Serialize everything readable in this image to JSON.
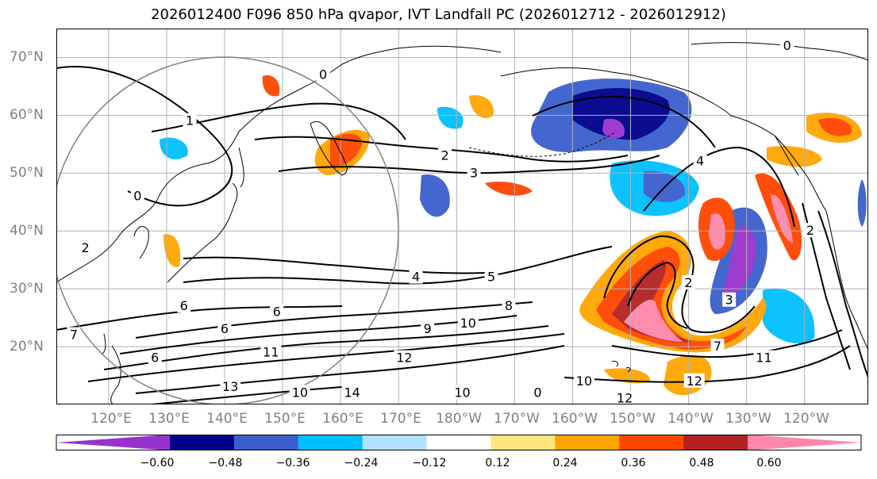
{
  "figure": {
    "title": "2026012400 F096 850 hPa qvapor, IVT Landfall PC (2026012712 - 2026012912)"
  },
  "map": {
    "projection": "PlateCarree (Pacific-centered)",
    "extent": {
      "lon_min": 111,
      "lon_max": 251,
      "lat_min": 10,
      "lat_max": 75
    },
    "lat_labels": [
      "70°N",
      "60°N",
      "50°N",
      "40°N",
      "30°N",
      "20°N"
    ],
    "lat_values": [
      70,
      60,
      50,
      40,
      30,
      20
    ],
    "lon_labels": [
      "120°E",
      "130°E",
      "140°E",
      "150°E",
      "160°E",
      "170°E",
      "180°W",
      "170°W",
      "160°W",
      "150°W",
      "140°W",
      "130°W",
      "120°W"
    ],
    "lon_values": [
      120,
      130,
      140,
      150,
      160,
      170,
      180,
      190,
      200,
      210,
      220,
      230,
      240
    ],
    "gridlines": true,
    "circle": {
      "center_lon": 140,
      "center_lat": 40,
      "radius_deg": 30,
      "color": "#808080"
    },
    "contour_labels": [
      {
        "text": "0",
        "lon": 194,
        "lat": 12
      },
      {
        "text": "1",
        "lon": 134,
        "lat": 59
      },
      {
        "text": "2",
        "lon": 178,
        "lat": 53
      },
      {
        "text": "3",
        "lon": 183,
        "lat": 50
      },
      {
        "text": "4",
        "lon": 173,
        "lat": 32
      },
      {
        "text": "5",
        "lon": 186,
        "lat": 32
      },
      {
        "text": "6",
        "lon": 133,
        "lat": 27
      },
      {
        "text": "6",
        "lon": 149,
        "lat": 26
      },
      {
        "text": "6",
        "lon": 140,
        "lat": 23
      },
      {
        "text": "6",
        "lon": 128,
        "lat": 18
      },
      {
        "text": "7",
        "lon": 114,
        "lat": 22
      },
      {
        "text": "8",
        "lon": 189,
        "lat": 27
      },
      {
        "text": "9",
        "lon": 175,
        "lat": 23
      },
      {
        "text": "10",
        "lon": 182,
        "lat": 24
      },
      {
        "text": "10",
        "lon": 153,
        "lat": 12
      },
      {
        "text": "10",
        "lon": 181,
        "lat": 12
      },
      {
        "text": "10",
        "lon": 202,
        "lat": 14
      },
      {
        "text": "11",
        "lon": 148,
        "lat": 19
      },
      {
        "text": "11",
        "lon": 233,
        "lat": 18
      },
      {
        "text": "12",
        "lon": 171,
        "lat": 18
      },
      {
        "text": "12",
        "lon": 209,
        "lat": 11
      },
      {
        "text": "12",
        "lon": 221,
        "lat": 14
      },
      {
        "text": "13",
        "lon": 141,
        "lat": 13
      },
      {
        "text": "14",
        "lon": 162,
        "lat": 12
      },
      {
        "text": "2",
        "lon": 116,
        "lat": 37
      },
      {
        "text": "0",
        "lon": 125,
        "lat": 46
      },
      {
        "text": "0",
        "lon": 157,
        "lat": 67
      },
      {
        "text": "0",
        "lon": 237,
        "lat": 72
      },
      {
        "text": "2",
        "lon": 220,
        "lat": 31
      },
      {
        "text": "3",
        "lon": 227,
        "lat": 28
      },
      {
        "text": "4",
        "lon": 222,
        "lat": 52
      },
      {
        "text": "2",
        "lon": 241,
        "lat": 40
      },
      {
        "text": "7",
        "lon": 225,
        "lat": 20
      }
    ]
  },
  "colorbar": {
    "colors": [
      "#9932cc",
      "#00008b",
      "#3a5fcd",
      "#00bfff",
      "#b0e2ff",
      "#ffffff",
      "#ffe680",
      "#ffa500",
      "#ff4500",
      "#b22222",
      "#ff88aa"
    ],
    "tick_labels": [
      "−0.60",
      "−0.48",
      "−0.36",
      "−0.24",
      "−0.12",
      "0.12",
      "0.24",
      "0.36",
      "0.48",
      "0.60"
    ],
    "tick_values": [
      -0.6,
      -0.48,
      -0.36,
      -0.24,
      -0.12,
      0.12,
      0.24,
      0.36,
      0.48,
      0.6
    ],
    "extend": "both"
  }
}
